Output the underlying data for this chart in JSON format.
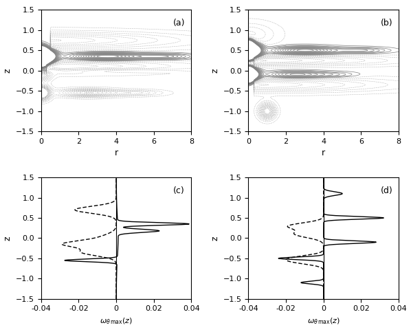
{
  "fig_width": 5.98,
  "fig_height": 4.83,
  "dpi": 100,
  "contour_xlim": [
    0,
    8
  ],
  "contour_ylim": [
    -1.5,
    1.5
  ],
  "contour_xlabel": "r",
  "contour_ylabel": "z",
  "lineplot_xlim": [
    -0.04,
    0.04
  ],
  "lineplot_ylim": [
    -1.5,
    1.5
  ],
  "lineplot_xticks": [
    -0.04,
    -0.02,
    0.0,
    0.02,
    0.04
  ],
  "lineplot_yticks": [
    -1.5,
    -1.0,
    -0.5,
    0.0,
    0.5,
    1.0,
    1.5
  ],
  "contour_xticks": [
    0,
    2,
    4,
    6,
    8
  ],
  "contour_yticks": [
    -1.5,
    -1.0,
    -0.5,
    0.0,
    0.5,
    1.0,
    1.5
  ]
}
